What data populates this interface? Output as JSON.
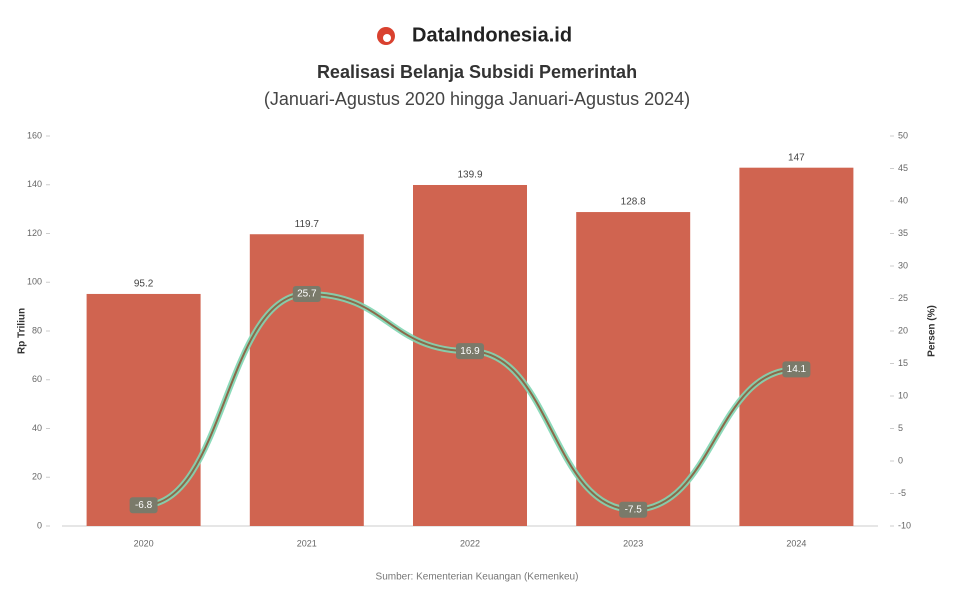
{
  "brand": "DataIndonesia.id",
  "chart_data": {
    "type": "bar",
    "title": "Realisasi Belanja Subsidi Pemerintah",
    "subtitle": "(Januari-Agustus 2020 hingga Januari-Agustus 2024)",
    "y_label": "Rp Triliun",
    "y2_label": "Persen (%)",
    "source": "Sumber: Kementerian Keuangan (Kemenkeu)",
    "categories": [
      "2020",
      "2021",
      "2022",
      "2023",
      "2024"
    ],
    "series": [
      {
        "type": "bar",
        "color": "#d06450",
        "values": [
          95.2,
          119.7,
          139.9,
          128.8,
          147
        ]
      },
      {
        "type": "line",
        "axis": "y2",
        "color": "#7fd6b2",
        "values": [
          -6.8,
          25.7,
          16.9,
          -7.5,
          14.1
        ]
      }
    ],
    "ylim": [
      0,
      160
    ],
    "yticks": [
      0,
      20,
      40,
      60,
      80,
      100,
      120,
      140,
      160
    ],
    "y2lim": [
      -10,
      50
    ],
    "y2ticks": [
      -10,
      -5,
      0,
      5,
      10,
      15,
      20,
      25,
      30,
      35,
      40,
      45,
      50
    ]
  }
}
